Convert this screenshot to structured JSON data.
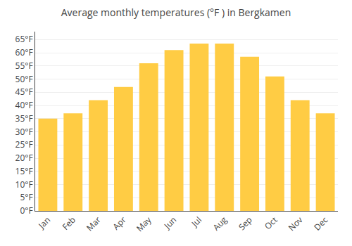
{
  "chart_data": {
    "type": "bar",
    "title": "Average monthly temperatures (°F ) in Bergkamen",
    "categories": [
      "Jan",
      "Feb",
      "Mar",
      "Apr",
      "May",
      "Jun",
      "Jul",
      "Aug",
      "Sep",
      "Oct",
      "Nov",
      "Dec"
    ],
    "values": [
      35,
      37,
      42,
      47,
      56,
      61,
      63.5,
      63.5,
      58.5,
      51,
      42,
      37
    ],
    "color": "#FFCC44",
    "ylim": [
      0,
      68
    ],
    "yticks": [
      {
        "value": 0,
        "label": "0°F"
      },
      {
        "value": 5,
        "label": "5°F"
      },
      {
        "value": 10,
        "label": "10°F"
      },
      {
        "value": 15,
        "label": "15°F"
      },
      {
        "value": 20,
        "label": "20°F"
      },
      {
        "value": 25,
        "label": "25°F"
      },
      {
        "value": 30,
        "label": "30°F"
      },
      {
        "value": 35,
        "label": "35°F"
      },
      {
        "value": 40,
        "label": "40°F"
      },
      {
        "value": 45,
        "label": "45°F"
      },
      {
        "value": 50,
        "label": "50°F"
      },
      {
        "value": 55,
        "label": "55°F"
      },
      {
        "value": 60,
        "label": "60°F"
      },
      {
        "value": 65,
        "label": "65°F"
      }
    ],
    "grid": true
  }
}
